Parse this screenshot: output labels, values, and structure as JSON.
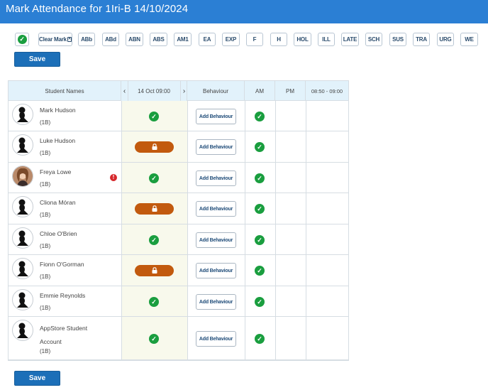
{
  "header": {
    "title": "Mark Attendance for 1Iri-B 14/10/2024"
  },
  "toolbar": {
    "clear_mark_label": "Clear Mark",
    "codes": [
      "ABb",
      "ABd",
      "ABN",
      "ABS",
      "AM1",
      "EA",
      "EXP",
      "F",
      "H",
      "HOL",
      "ILL",
      "LATE",
      "SCH",
      "SUS",
      "TRA",
      "URG",
      "WE"
    ],
    "save_label": "Save"
  },
  "table": {
    "headers": {
      "students": "Student Names",
      "date": "14 Oct 09:00",
      "behaviour": "Behaviour",
      "am": "AM",
      "pm": "PM",
      "time": "08:50 - 09:00"
    },
    "behaviour_label": "Add Behaviour",
    "rows": [
      {
        "name": "Mark Hudson",
        "class": "(1B)",
        "photo": false,
        "alert": false,
        "status": "present",
        "am": "present"
      },
      {
        "name": "Luke Hudson",
        "class": "(1B)",
        "photo": false,
        "alert": false,
        "status": "locked",
        "am": "present"
      },
      {
        "name": "Freya Lowe",
        "class": "(1B)",
        "photo": true,
        "alert": true,
        "status": "present",
        "am": "present"
      },
      {
        "name": "Cliona Móran",
        "class": "(1B)",
        "photo": false,
        "alert": false,
        "status": "locked",
        "am": "present"
      },
      {
        "name": "Chloe O'Brien",
        "class": "(1B)",
        "photo": false,
        "alert": false,
        "status": "present",
        "am": "present"
      },
      {
        "name": "Fionn O'Gorman",
        "class": "(1B)",
        "photo": false,
        "alert": false,
        "status": "locked",
        "am": "present"
      },
      {
        "name": "Emmie Reynolds",
        "class": "(1B)",
        "photo": false,
        "alert": false,
        "status": "present",
        "am": "present"
      },
      {
        "name": "AppStore Student Account",
        "class": "(1B)",
        "photo": false,
        "alert": false,
        "status": "present",
        "am": "present"
      }
    ]
  },
  "colors": {
    "header": "#2b7fd4",
    "present": "#1a9e3f",
    "locked": "#c25a0e",
    "alert": "#d6282c",
    "save": "#1c6fb8"
  },
  "icons": {
    "present": "check-circle-icon",
    "locked": "lock-icon",
    "alert": "exclamation-icon",
    "avatar": "person-silhouette-icon"
  }
}
